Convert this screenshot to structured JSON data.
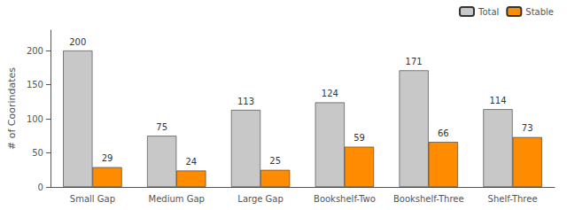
{
  "chart_data": {
    "type": "bar",
    "ylabel": "# of Coorindates",
    "categories": [
      "Small Gap",
      "Medium Gap",
      "Large Gap",
      "Bookshelf-Two",
      "Bookshelf-Three",
      "Shelf-Three"
    ],
    "series": [
      {
        "name": "Total",
        "color": "#c8c8c8",
        "values": [
          200,
          75,
          113,
          124,
          171,
          114
        ]
      },
      {
        "name": "Stable",
        "color": "#ff8c00",
        "values": [
          29,
          24,
          25,
          59,
          66,
          73
        ]
      }
    ],
    "ylim": [
      0,
      230
    ],
    "yticks": [
      0,
      50,
      100,
      150,
      200
    ],
    "grid": false,
    "legend": "upper right",
    "data_labels": true
  }
}
